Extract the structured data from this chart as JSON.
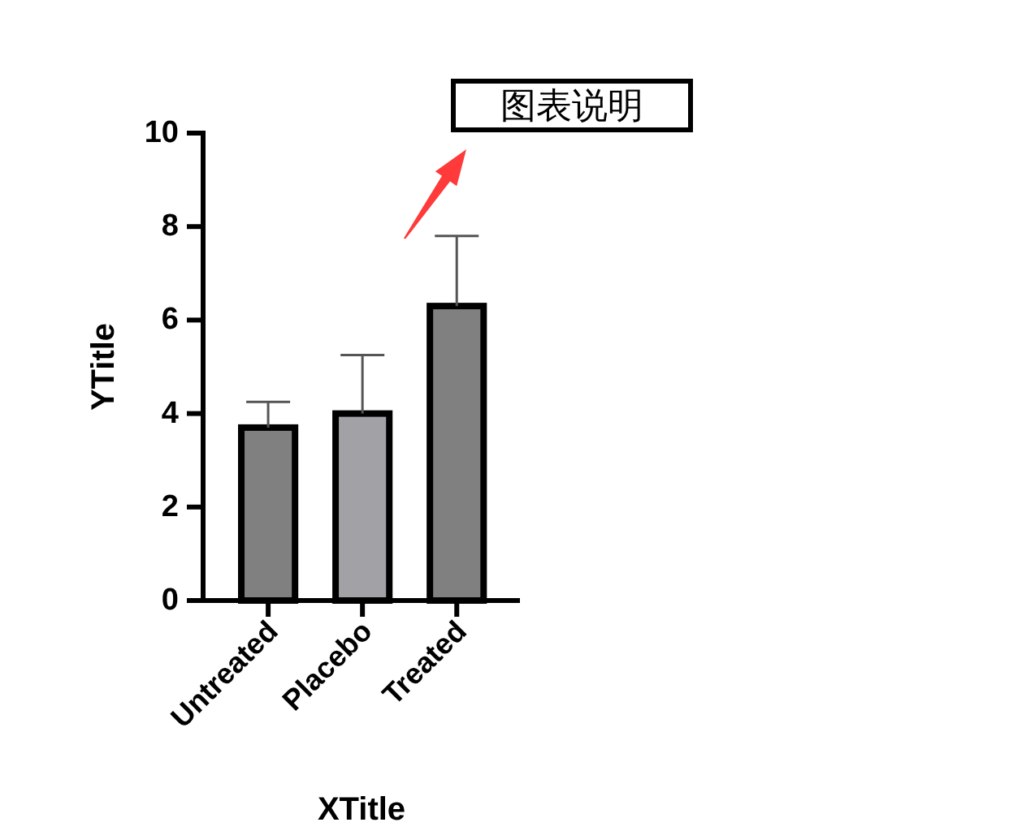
{
  "chart_data": {
    "type": "bar",
    "xlabel": "XTitle",
    "ylabel": "YTitle",
    "categories": [
      "Untreated",
      "Placebo",
      "Treated"
    ],
    "values": [
      3.7,
      4.0,
      6.3
    ],
    "colors": [
      "#808080",
      "#a1a1a6",
      "#808080"
    ],
    "errors": [
      [
        3.7,
        4.25
      ],
      [
        4.0,
        5.25
      ],
      [
        6.3,
        7.8
      ]
    ],
    "ylim": [
      0,
      10
    ],
    "yticks": [
      0,
      2,
      4,
      6,
      8,
      10
    ],
    "annotations": [
      "图表说明"
    ]
  }
}
